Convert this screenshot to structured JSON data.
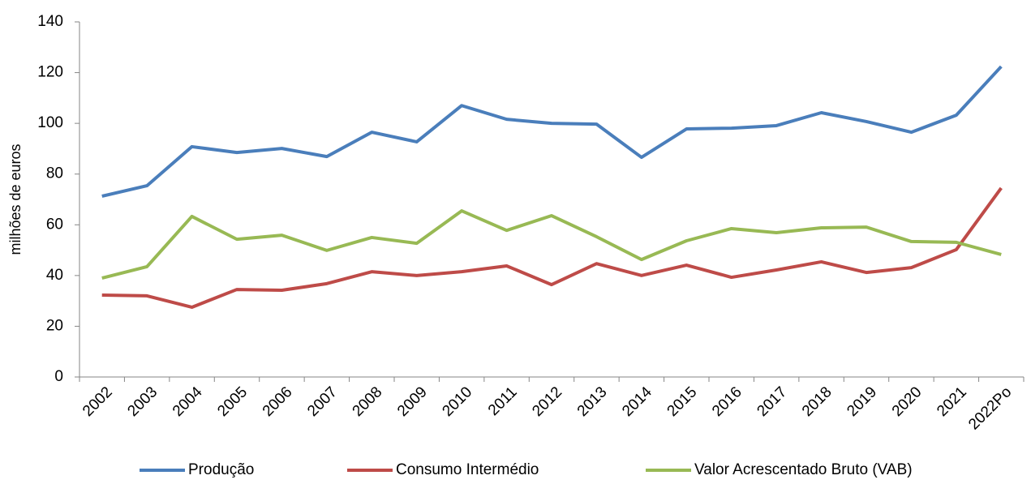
{
  "chart_data": {
    "type": "line",
    "y_label": "milhões de euros",
    "categories": [
      "2002",
      "2003",
      "2004",
      "2005",
      "2006",
      "2007",
      "2008",
      "2009",
      "2010",
      "2011",
      "2012",
      "2013",
      "2014",
      "2015",
      "2016",
      "2017",
      "2018",
      "2019",
      "2020",
      "2021",
      "2022Po"
    ],
    "series": [
      {
        "name": "Produção",
        "color": "#4a7ebb",
        "values": [
          71.3,
          75.4,
          90.8,
          88.5,
          90.1,
          86.9,
          96.5,
          92.7,
          107,
          101.6,
          100,
          99.7,
          86.6,
          97.8,
          98.1,
          99.1,
          104.2,
          100.7,
          96.5,
          103.2,
          122.4
        ]
      },
      {
        "name": "Consumo Intermédio",
        "color": "#be4b48",
        "values": [
          32.3,
          32,
          27.5,
          34.5,
          34.2,
          36.8,
          41.5,
          40,
          41.5,
          43.8,
          36.4,
          44.7,
          40,
          44.1,
          39.3,
          42.2,
          45.4,
          41.2,
          43.1,
          50.2,
          74.5
        ]
      },
      {
        "name": "Valor Acrescentado Bruto (VAB)",
        "color": "#98b954",
        "values": [
          39,
          43.5,
          63.3,
          54.3,
          55.9,
          49.9,
          55,
          52.7,
          65.5,
          57.8,
          63.6,
          55.3,
          46.3,
          53.7,
          58.5,
          56.9,
          58.8,
          59.1,
          53.4,
          53.1,
          48.3
        ]
      }
    ],
    "ylim": [
      0,
      140
    ],
    "yticks": [
      0,
      20,
      40,
      60,
      80,
      100,
      120,
      140
    ],
    "grid": false
  }
}
